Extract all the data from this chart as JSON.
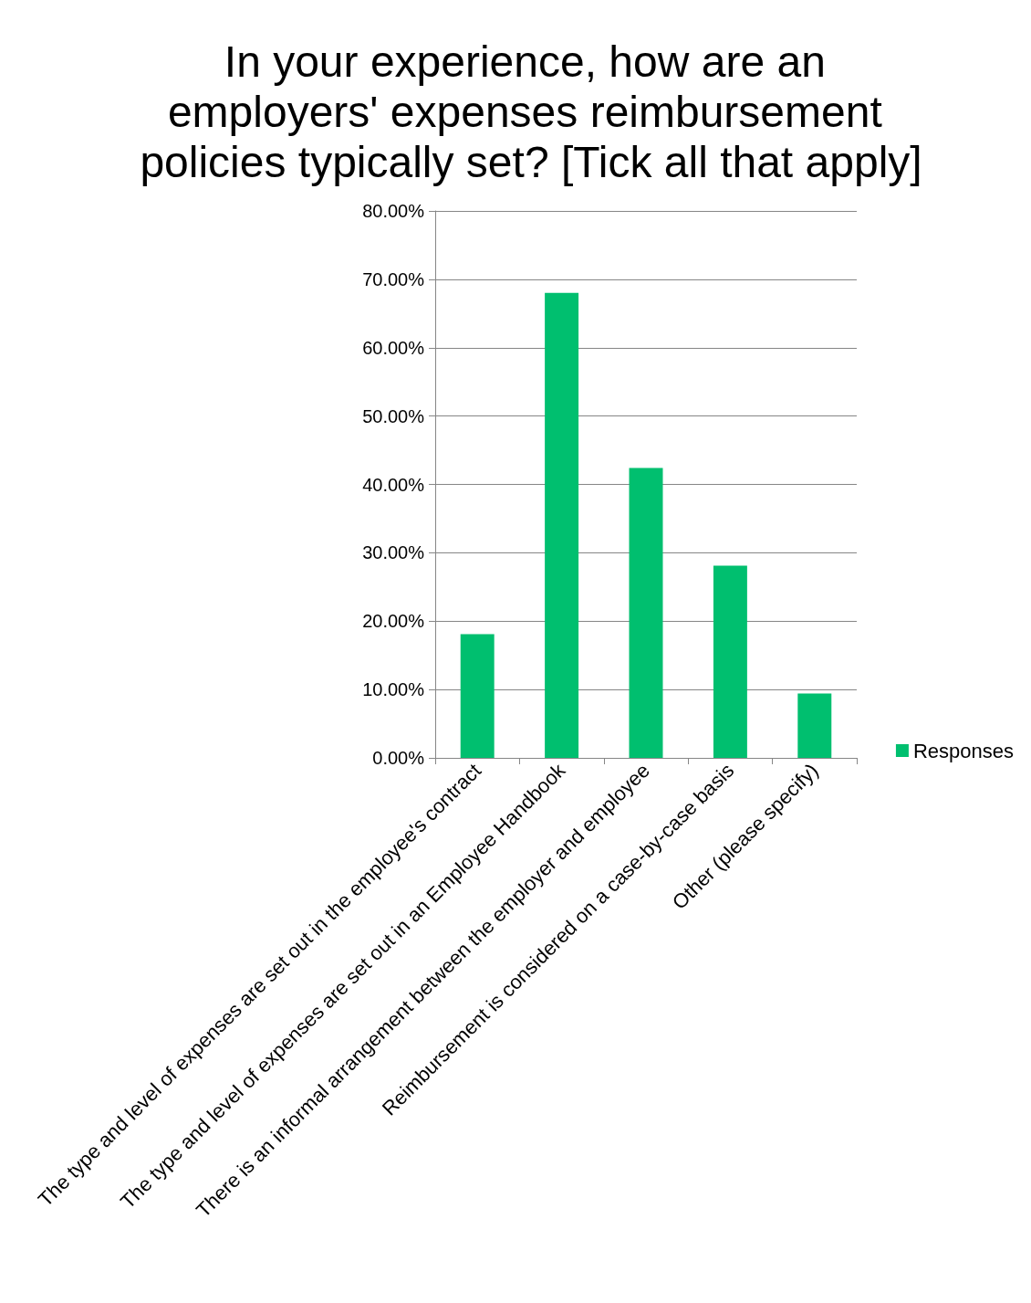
{
  "chart_data": {
    "type": "bar",
    "title": "In your experience, how are an employers' expenses reimbursement policies typically set? [Tick all that apply]",
    "categories": [
      "The type and level of expenses are set out in the employee's contract",
      "The type and level of expenses are set out in an Employee Handbook",
      "There is an informal arrangement between the employer and employee",
      "Reimbursement is considered on a case-by-case basis",
      "Other (please specify)"
    ],
    "series": [
      {
        "name": "Responses",
        "color": "#00bf6f",
        "values": [
          18.1,
          68.0,
          42.4,
          28.1,
          9.4
        ]
      }
    ],
    "ylim": [
      0,
      80
    ],
    "yticks": [
      {
        "value": 0,
        "label": "0.00%"
      },
      {
        "value": 10,
        "label": "10.00%"
      },
      {
        "value": 20,
        "label": "20.00%"
      },
      {
        "value": 30,
        "label": "30.00%"
      },
      {
        "value": 40,
        "label": "40.00%"
      },
      {
        "value": 50,
        "label": "50.00%"
      },
      {
        "value": 60,
        "label": "60.00%"
      },
      {
        "value": 70,
        "label": "70.00%"
      },
      {
        "value": 80,
        "label": "80.00%"
      }
    ],
    "grid": "y",
    "legend": "right"
  }
}
